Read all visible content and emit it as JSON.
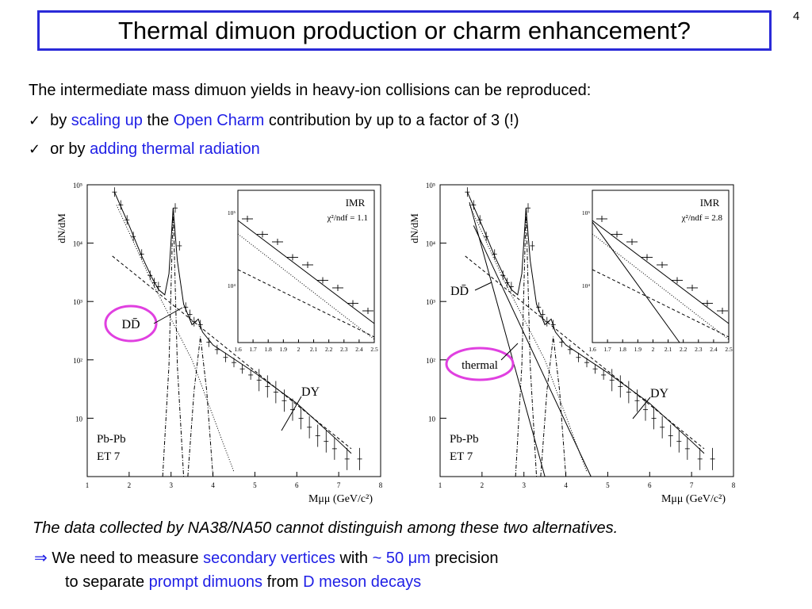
{
  "slide": {
    "title": "Thermal dimuon production or charm enhancement?",
    "page_number": "4",
    "intro": "The intermediate mass dimuon yields in heavy-ion collisions can be reproduced:",
    "bullets": [
      {
        "mark": "✓",
        "p1": "by ",
        "hl1": "scaling up",
        "p2": " the ",
        "hl2": "Open Charm",
        "p3": " contribution by up to a factor of 3 (!)"
      },
      {
        "mark": "✓",
        "p1": "or by ",
        "hl1": "adding thermal radiation"
      }
    ],
    "conclusion": "The data collected by NA38/NA50 cannot distinguish among these two alternatives.",
    "need": {
      "arrow": "⇒",
      "p1": " We need to measure ",
      "hl1": "secondary vertices",
      "p2": " with ",
      "hl2": "~ 50 μm",
      "p3": " precision"
    },
    "separate": {
      "p1": "to separate ",
      "hl1": "prompt dimuons",
      "p2": " from ",
      "hl2": "D meson decays"
    },
    "highlight_color": "#1f1fe6",
    "circle_color": "#e040e0"
  },
  "chart_data": [
    {
      "type": "scatter",
      "title": "",
      "ylabel": "dN/dM",
      "xlabel": "Mμμ (GeV/c²)",
      "xlim": [
        1,
        8
      ],
      "ylim": [
        1,
        100000
      ],
      "log_y": true,
      "x_ticks": [
        "1",
        "2",
        "3",
        "4",
        "5",
        "6",
        "7",
        "8"
      ],
      "y_ticks": [
        "10",
        "10²",
        "10³",
        "10⁴",
        "10⁵"
      ],
      "annotations": [
        "DD̄",
        "DY",
        "Pb-Pb",
        "ET 7"
      ],
      "circled": "DD̄",
      "inset": {
        "label": "IMR",
        "chi2": "χ²/ndf = 1.1",
        "xlim": [
          1.6,
          2.5
        ],
        "x_ticks": [
          "1.6",
          "1.7",
          "1.8",
          "1.9",
          "2",
          "2.1",
          "2.2",
          "2.3",
          "2.4",
          "2.5"
        ],
        "y_ticks": [
          "10⁵",
          "10⁴"
        ]
      }
    },
    {
      "type": "scatter",
      "title": "",
      "ylabel": "dN/dM",
      "xlabel": "Mμμ (GeV/c²)",
      "xlim": [
        1,
        8
      ],
      "ylim": [
        1,
        100000
      ],
      "log_y": true,
      "x_ticks": [
        "1",
        "2",
        "3",
        "4",
        "5",
        "6",
        "7",
        "8"
      ],
      "y_ticks": [
        "10",
        "10²",
        "10³",
        "10⁴",
        "10⁵"
      ],
      "annotations": [
        "DD̄",
        "thermal",
        "DY",
        "Pb-Pb",
        "ET 7"
      ],
      "circled": "thermal",
      "inset": {
        "label": "IMR",
        "chi2": "χ²/ndf = 2.8",
        "xlim": [
          1.6,
          2.5
        ],
        "x_ticks": [
          "1.6",
          "1.7",
          "1.8",
          "1.9",
          "2",
          "2.1",
          "2.2",
          "2.3",
          "2.4",
          "2.5"
        ],
        "y_ticks": [
          "10⁵",
          "10⁴"
        ]
      }
    }
  ]
}
